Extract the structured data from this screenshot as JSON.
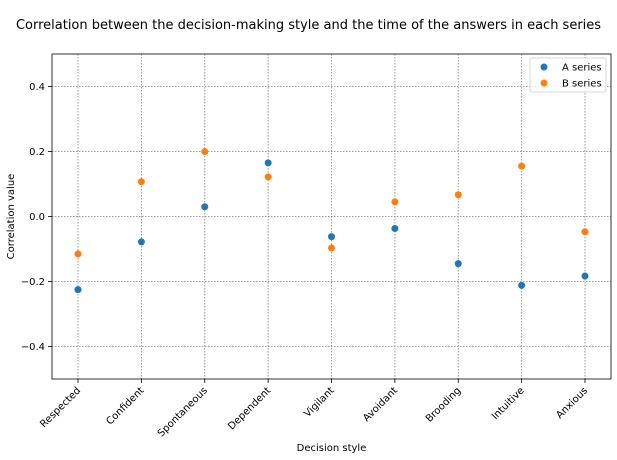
{
  "chart_data": {
    "type": "scatter",
    "title": "Correlation between the decision-making style and the time of the answers in each series",
    "xlabel": "Decision style",
    "ylabel": "Correlation value",
    "categories": [
      "Respected",
      "Confident",
      "Spontaneous",
      "Dependent",
      "Vigilant",
      "Avoidant",
      "Brooding",
      "Intuitive",
      "Anxious"
    ],
    "ylim": [
      -0.5,
      0.5
    ],
    "yticks": [
      -0.4,
      -0.2,
      0.0,
      0.2,
      0.4
    ],
    "ytick_labels": [
      "−0.4",
      "−0.2",
      "0.0",
      "0.2",
      "0.4"
    ],
    "grid": true,
    "legend_position": "top-right",
    "series": [
      {
        "name": "A series",
        "color": "#1f77b4",
        "values": [
          -0.225,
          -0.078,
          0.03,
          0.165,
          -0.062,
          -0.037,
          -0.145,
          -0.212,
          -0.183
        ]
      },
      {
        "name": "B series",
        "color": "#ff7f0e",
        "values": [
          -0.115,
          0.107,
          0.2,
          0.122,
          -0.097,
          0.045,
          0.067,
          0.155,
          -0.047
        ]
      }
    ]
  }
}
